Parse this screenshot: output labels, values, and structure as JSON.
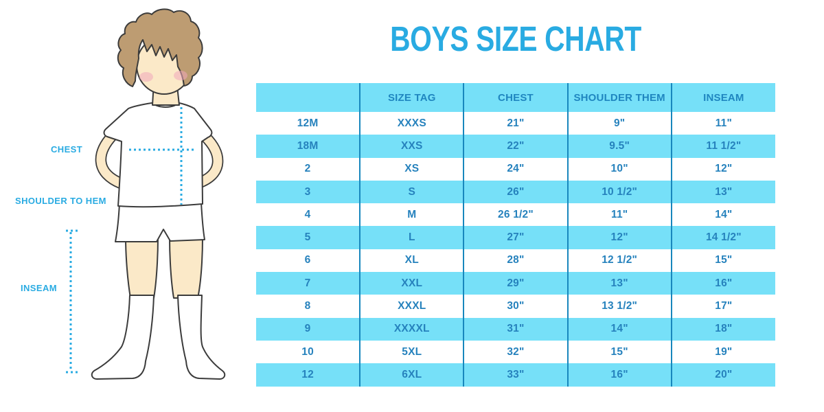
{
  "title": "BOYS SIZE CHART",
  "colors": {
    "accent": "#29abe2",
    "stripe": "#76e0f8",
    "divider": "#1887bd",
    "cell-text": "#2682bd",
    "header-text": "#1f86c0",
    "skin": "#fbe9c8",
    "hair": "#bd9c72",
    "blush": "#f0a8bb",
    "outline": "#3b3b3b",
    "clothes": "#ffffff"
  },
  "figure": {
    "labels": {
      "chest": "CHEST",
      "shoulder_to_hem": "SHOULDER TO HEM",
      "inseam": "INSEAM"
    }
  },
  "chart_data": {
    "type": "table",
    "title": "BOYS SIZE CHART",
    "columns": [
      "",
      "SIZE TAG",
      "CHEST",
      "SHOULDER THEM",
      "INSEAM"
    ],
    "rows": [
      [
        "12M",
        "XXXS",
        "21\"",
        "9\"",
        "11\""
      ],
      [
        "18M",
        "XXS",
        "22\"",
        "9.5\"",
        "11 1/2\""
      ],
      [
        "2",
        "XS",
        "24\"",
        "10\"",
        "12\""
      ],
      [
        "3",
        "S",
        "26\"",
        "10 1/2\"",
        "13\""
      ],
      [
        "4",
        "M",
        "26 1/2\"",
        "11\"",
        "14\""
      ],
      [
        "5",
        "L",
        "27\"",
        "12\"",
        "14 1/2\""
      ],
      [
        "6",
        "XL",
        "28\"",
        "12 1/2\"",
        "15\""
      ],
      [
        "7",
        "XXL",
        "29\"",
        "13\"",
        "16\""
      ],
      [
        "8",
        "XXXL",
        "30\"",
        "13 1/2\"",
        "17\""
      ],
      [
        "9",
        "XXXXL",
        "31\"",
        "14\"",
        "18\""
      ],
      [
        "10",
        "5XL",
        "32\"",
        "15\"",
        "19\""
      ],
      [
        "12",
        "6XL",
        "33\"",
        "16\"",
        "20\""
      ]
    ]
  }
}
